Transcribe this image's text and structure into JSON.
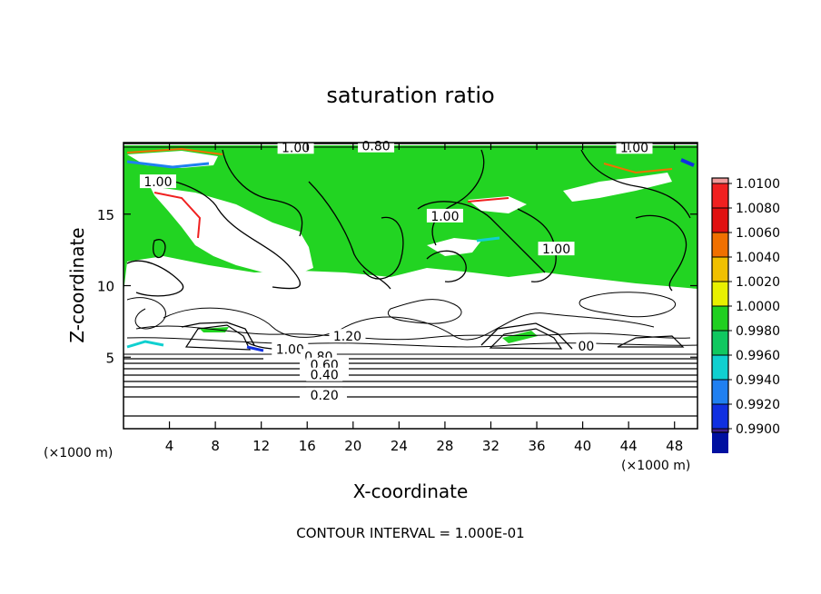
{
  "chart_data": {
    "type": "heatmap",
    "title": "saturation ratio",
    "xlabel": "X-coordinate",
    "ylabel": "Z-coordinate",
    "x_unit_left": "(×1000 m)",
    "x_unit_right": "(×1000 m)",
    "xlim": [
      0,
      50
    ],
    "ylim": [
      0,
      20
    ],
    "xticks": [
      4,
      8,
      12,
      16,
      20,
      24,
      28,
      32,
      36,
      40,
      44,
      48
    ],
    "yticks": [
      5,
      10,
      15
    ],
    "footer": "CONTOUR INTERVAL = 1.000E-01",
    "colorbar": {
      "levels": [
        "1.0100",
        "1.0080",
        "1.0060",
        "1.0040",
        "1.0020",
        "1.0000",
        "0.9980",
        "0.9960",
        "0.9940",
        "0.9920",
        "0.9900"
      ],
      "colors": [
        "#f09a9a",
        "#f02020",
        "#e01010",
        "#f07000",
        "#f0c000",
        "#e8f000",
        "#20d020",
        "#10c860",
        "#10d0d0",
        "#2080f0",
        "#1030e0",
        "#0010a0",
        "#402090"
      ]
    },
    "contour_labels": [
      {
        "text": "1.00",
        "x": 15,
        "z": 19.6
      },
      {
        "text": "0.80",
        "x": 22,
        "z": 19.7
      },
      {
        "text": "1.00",
        "x": 44.5,
        "z": 19.6
      },
      {
        "text": "1.00",
        "x": 3,
        "z": 17.2
      },
      {
        "text": "1.00",
        "x": 28,
        "z": 14.8
      },
      {
        "text": "1.00",
        "x": 37.7,
        "z": 12.5
      },
      {
        "text": "1.20",
        "x": 19.5,
        "z": 6.4
      },
      {
        "text": "1.00",
        "x": 14.5,
        "z": 5.5
      },
      {
        "text": "0.80",
        "x": 17,
        "z": 5
      },
      {
        "text": "0.60",
        "x": 17.5,
        "z": 4.4
      },
      {
        "text": "0.40",
        "x": 17.5,
        "z": 3.7
      },
      {
        "text": "0.20",
        "x": 17.5,
        "z": 2.3
      },
      {
        "text": "00",
        "x": 40.3,
        "z": 5.7
      }
    ]
  }
}
